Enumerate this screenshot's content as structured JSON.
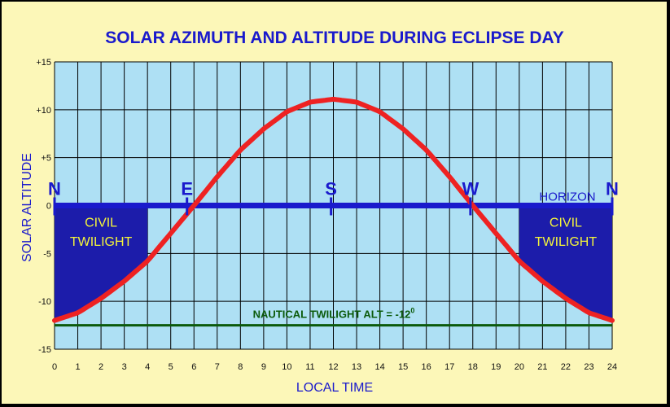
{
  "chart_data": {
    "type": "line",
    "title": "SOLAR AZIMUTH AND ALTITUDE DURING ECLIPSE DAY",
    "xlabel": "LOCAL TIME",
    "ylabel": "SOLAR ALTITUDE",
    "xlim": [
      0,
      24
    ],
    "ylim": [
      -15,
      15
    ],
    "x_ticks": [
      "0",
      "1",
      "2",
      "3",
      "4",
      "5",
      "6",
      "7",
      "8",
      "9",
      "10",
      "11",
      "12",
      "13",
      "14",
      "15",
      "16",
      "17",
      "18",
      "19",
      "20",
      "21",
      "22",
      "23",
      "24"
    ],
    "y_ticks": [
      "+15",
      "+10",
      "+5",
      "0",
      "-5",
      "-10",
      "-15"
    ],
    "grid": true,
    "series": [
      {
        "x": [
          0,
          1,
          2,
          3,
          4,
          5,
          6,
          7,
          8,
          9,
          10,
          11,
          12,
          13,
          14,
          15,
          16,
          17,
          18,
          19,
          20,
          21,
          22,
          23,
          24
        ],
        "y": [
          -12,
          -11.2,
          -9.7,
          -7.9,
          -5.8,
          -2.9,
          0,
          3,
          5.8,
          8.0,
          9.8,
          10.8,
          11.1,
          10.8,
          9.8,
          8.0,
          5.8,
          3,
          0,
          -2.9,
          -5.8,
          -7.9,
          -9.7,
          -11.2,
          -12
        ],
        "color": "#ee2222"
      }
    ],
    "horizon": {
      "y": 0,
      "label": "HORIZON",
      "color": "#1a1acc"
    },
    "compass_points": [
      {
        "label": "N",
        "x": 0
      },
      {
        "label": "E",
        "x": 5.7
      },
      {
        "label": "S",
        "x": 11.9
      },
      {
        "label": "W",
        "x": 17.9
      },
      {
        "label": "N",
        "x": 24
      }
    ],
    "twilight_regions": [
      {
        "line1": "CIVIL",
        "line2": "TWILIGHT",
        "x_start": 0,
        "x_end": 4
      },
      {
        "line1": "CIVIL",
        "line2": "TWILIGHT",
        "x_start": 20,
        "x_end": 24
      }
    ],
    "nautical_line": {
      "y": -12.5,
      "text": "NAUTICAL TWILIGHT ALT = -12",
      "superscript": "0",
      "color": "#0b5a0b"
    },
    "colors": {
      "plot_bg": "#aee0f4",
      "grid": "#000000",
      "twilight_fill": "#1c1caa",
      "page_bg": "#fcf7b8"
    }
  }
}
